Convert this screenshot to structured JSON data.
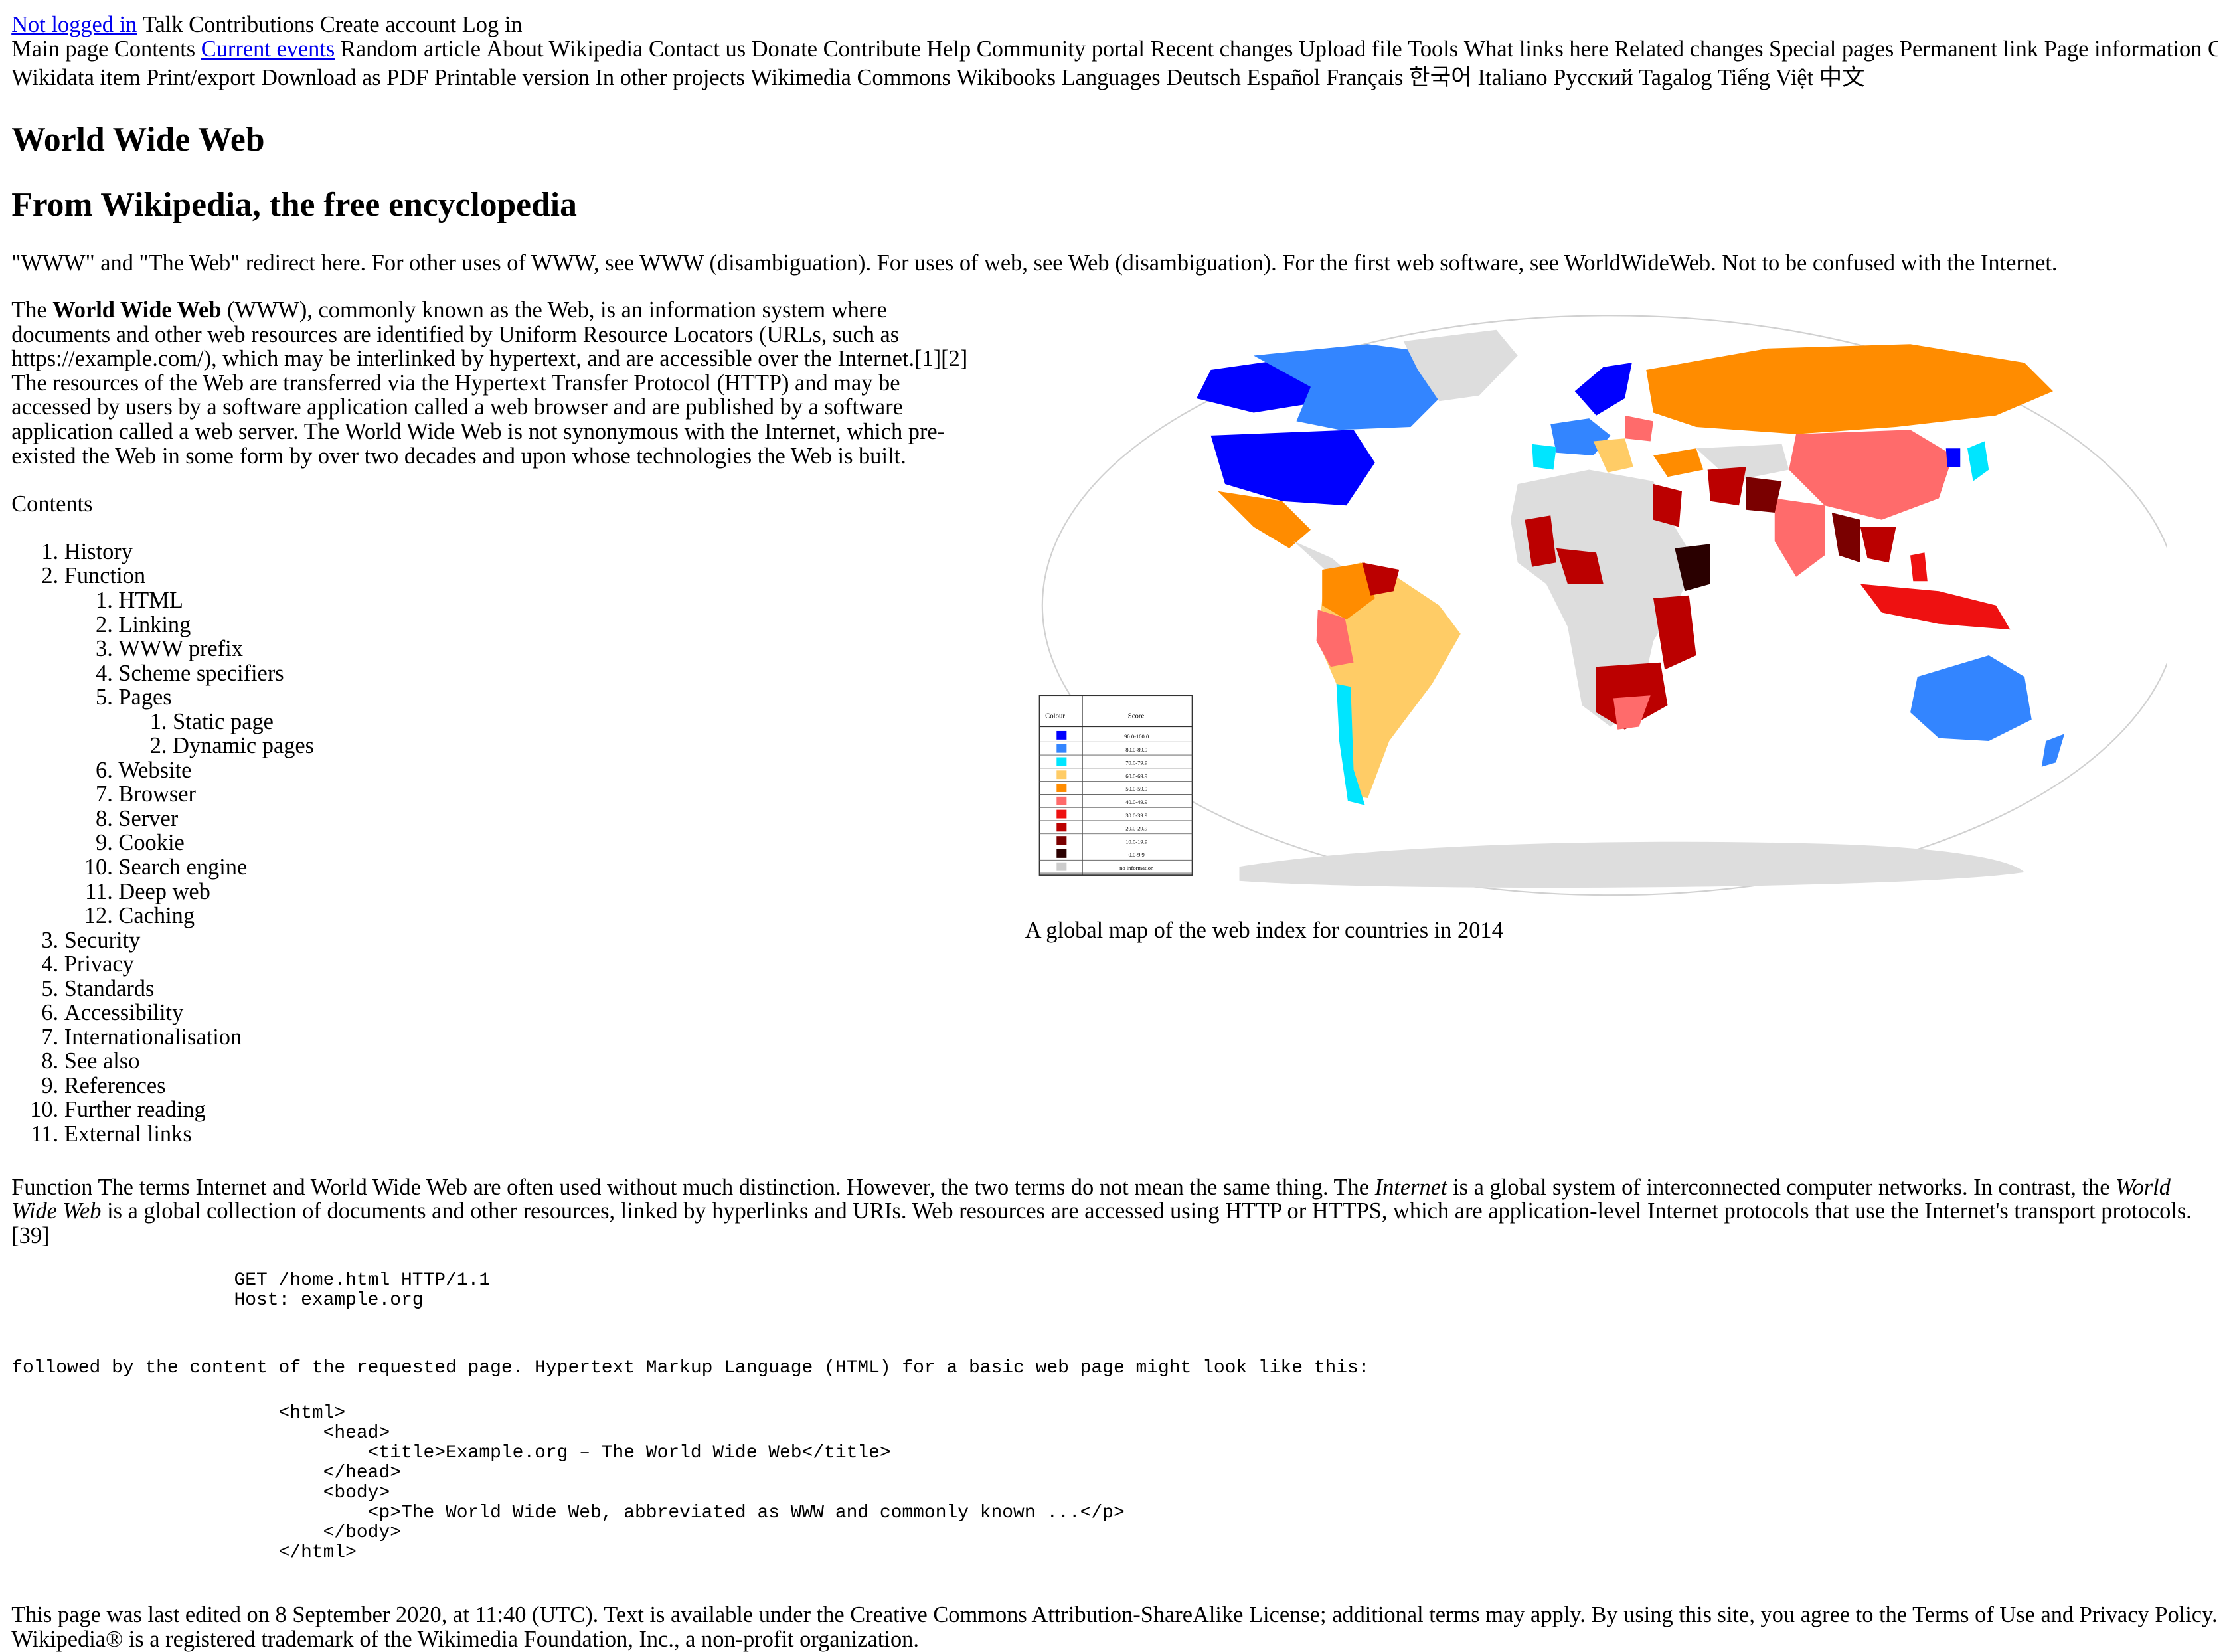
{
  "personal": {
    "not_logged_in": "Not logged in",
    "talk": "Talk",
    "contributions": "Contributions",
    "create_account": "Create account",
    "log_in": "Log in"
  },
  "nav": {
    "line1": [
      {
        "label": "Main page",
        "name": "main-page-link",
        "link": false
      },
      {
        "label": "Contents",
        "name": "contents-link",
        "link": false
      },
      {
        "label": "Current events",
        "name": "current-events-link",
        "link": true
      },
      {
        "label": "Random article",
        "name": "random-article-link",
        "link": false
      },
      {
        "label": "About Wikipedia",
        "name": "about-wikipedia-link",
        "link": false
      },
      {
        "label": "Contact us",
        "name": "contact-us-link",
        "link": false
      },
      {
        "label": "Donate",
        "name": "donate-link",
        "link": false
      },
      {
        "label": "Contribute",
        "name": "contribute-heading",
        "link": false
      },
      {
        "label": "Help",
        "name": "help-link",
        "link": false
      },
      {
        "label": "Community portal",
        "name": "community-portal-link",
        "link": false
      },
      {
        "label": "Recent changes",
        "name": "recent-changes-link",
        "link": false
      },
      {
        "label": "Upload file",
        "name": "upload-file-link",
        "link": false
      },
      {
        "label": "Tools",
        "name": "tools-heading",
        "link": false
      },
      {
        "label": "What links here",
        "name": "what-links-here-link",
        "link": false
      },
      {
        "label": "Related changes",
        "name": "related-changes-link",
        "link": false
      },
      {
        "label": "Special pages",
        "name": "special-pages-link",
        "link": false
      },
      {
        "label": "Permanent link",
        "name": "permanent-link",
        "link": false
      },
      {
        "label": "Page information",
        "name": "page-information-link",
        "link": false
      },
      {
        "label": "Cite this page",
        "name": "cite-this-page-link",
        "link": false
      }
    ],
    "line2": [
      {
        "label": "Wikidata item",
        "name": "wikidata-item-link",
        "link": false
      },
      {
        "label": "Print/export",
        "name": "print-export-heading",
        "link": false
      },
      {
        "label": "Download as PDF",
        "name": "download-pdf-link",
        "link": false
      },
      {
        "label": "Printable version",
        "name": "printable-version-link",
        "link": false
      },
      {
        "label": "In other projects",
        "name": "other-projects-heading",
        "link": false
      },
      {
        "label": "Wikimedia Commons",
        "name": "wikimedia-commons-link",
        "link": false
      },
      {
        "label": "Wikibooks",
        "name": "wikibooks-link",
        "link": false
      },
      {
        "label": "Languages",
        "name": "languages-heading",
        "link": false
      },
      {
        "label": "Deutsch",
        "name": "lang-deutsch-link",
        "link": false
      },
      {
        "label": "Español",
        "name": "lang-espanol-link",
        "link": false
      },
      {
        "label": "Français",
        "name": "lang-francais-link",
        "link": false
      },
      {
        "label": "한국어",
        "name": "lang-korean-link",
        "link": false
      },
      {
        "label": "Italiano",
        "name": "lang-italiano-link",
        "link": false
      },
      {
        "label": "Русский",
        "name": "lang-russian-link",
        "link": false
      },
      {
        "label": "Tagalog",
        "name": "lang-tagalog-link",
        "link": false
      },
      {
        "label": "Tiếng Việt",
        "name": "lang-vietnamese-link",
        "link": false
      },
      {
        "label": "中文",
        "name": "lang-chinese-link",
        "link": false
      }
    ]
  },
  "article": {
    "title": "World Wide Web",
    "tagline": "From Wikipedia, the free encyclopedia",
    "hatnote": "\"WWW\" and \"The Web\" redirect here. For other uses of WWW, see WWW (disambiguation). For uses of web, see Web (disambiguation). For the first web software, see WorldWideWeb. Not to be confused with the Internet.",
    "intro_pre": "The ",
    "intro_bold": "World Wide Web",
    "intro_post": " (WWW), commonly known as the Web, is an information system where documents and other web resources are identified by Uniform Resource Locators (URLs, such as https://example.com/), which may be interlinked by hypertext, and are accessible over the Internet.[1][2] The resources of the Web are transferred via the Hypertext Transfer Protocol (HTTP) and may be accessed by users by a software application called a web browser and are published by a software application called a web server. The World Wide Web is not synonymous with the Internet, which pre-existed the Web in some form by over two decades and upon whose technologies the Web is built.",
    "function_1": "Function The terms Internet and World Wide Web are often used without much distinction. However, the two terms do not mean the same thing. The ",
    "function_em1": "Internet",
    "function_2": " is a global system of interconnected computer networks. In contrast, the ",
    "function_em2": "World Wide Web",
    "function_3": " is a global collection of documents and other resources, linked by hyperlinks and URIs. Web resources are accessed using HTTP or HTTPS, which are application-level Internet protocols that use the Internet's transport protocols.[39]",
    "http_request": "                    GET /home.html HTTP/1.1\n                    Host: example.org",
    "followed_by": "followed by the content of the requested page. Hypertext Markup Language (HTML) for a basic web page might look like this:",
    "html_example": "                        <html>\n                            <head>\n                                <title>Example.org – The World Wide Web</title>\n                            </head>\n                            <body>\n                                <p>The World Wide Web, abbreviated as WWW and commonly known ...</p>\n                            </body>\n                        </html>"
  },
  "toc": {
    "title": "Contents",
    "history": "History",
    "function": "Function",
    "html": "HTML",
    "linking": "Linking",
    "www_prefix": "WWW prefix",
    "scheme": "Scheme specifiers",
    "pages": "Pages",
    "static_page": "Static page",
    "dynamic_pages": "Dynamic pages",
    "website": "Website",
    "browser": "Browser",
    "server": "Server",
    "cookie": "Cookie",
    "search_engine": "Search engine",
    "deep_web": "Deep web",
    "caching": "Caching",
    "security": "Security",
    "privacy": "Privacy",
    "standards": "Standards",
    "accessibility": "Accessibility",
    "i18n": "Internationalisation",
    "see_also": "See also",
    "references": "References",
    "further_reading": "Further reading",
    "external_links": "External links"
  },
  "figure": {
    "caption": "A global map of the web index for countries in 2014",
    "legend": {
      "col_colour": "Colour",
      "col_score": "Score",
      "rows": [
        {
          "color": "#0000ff",
          "score": "90.0-100.0"
        },
        {
          "color": "#3385ff",
          "score": "80.0-89.9"
        },
        {
          "color": "#00e5ff",
          "score": "70.0-79.9"
        },
        {
          "color": "#ffcc66",
          "score": "60.0-69.9"
        },
        {
          "color": "#ff8c00",
          "score": "50.0-59.9"
        },
        {
          "color": "#ff6b6b",
          "score": "40.0-49.9"
        },
        {
          "color": "#ee1111",
          "score": "30.0-39.9"
        },
        {
          "color": "#bb0000",
          "score": "20.0-29.9"
        },
        {
          "color": "#7a0000",
          "score": "10.0-19.9"
        },
        {
          "color": "#2a0000",
          "score": "0.0-9.9"
        },
        {
          "color": "#cccccc",
          "score": "no information"
        }
      ]
    }
  },
  "footer": {
    "text": "This page was last edited on 8 September 2020, at 11:40 (UTC). Text is available under the Creative Commons Attribution-ShareAlike License; additional terms may apply. By using this site, you agree to the Terms of Use and Privacy Policy. Wikipedia® is a registered trademark of the Wikimedia Foundation, Inc., a non-profit organization."
  }
}
